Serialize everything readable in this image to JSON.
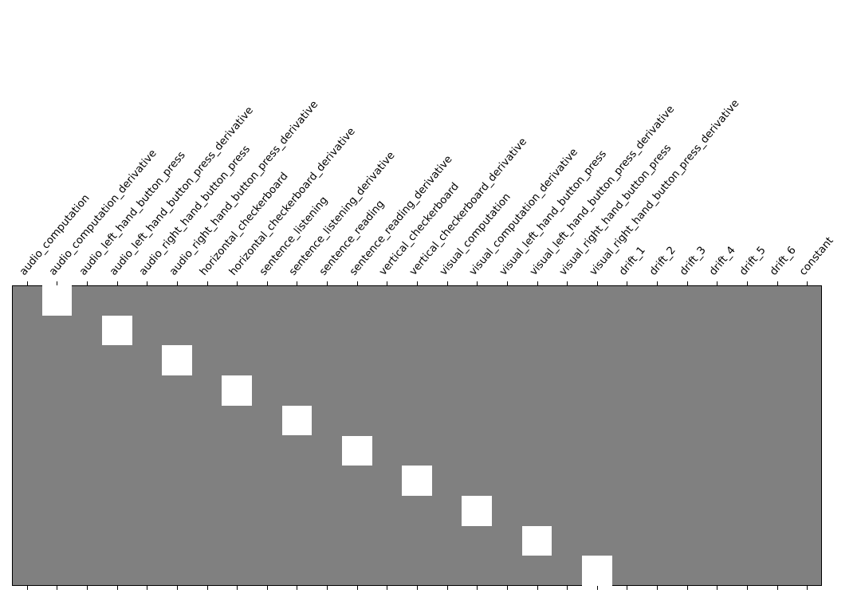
{
  "chart_data": {
    "type": "heatmap",
    "title": "",
    "xlabel": "",
    "ylabel": "",
    "colormap": "gray",
    "vmin": -1,
    "vmax": 1,
    "colors": {
      "zero": "#808080",
      "one": "#ffffff",
      "frame": "#000000"
    },
    "x_tick_position": "top",
    "x_tick_rotation_deg": 50,
    "y_ticks": [],
    "columns": [
      "audio_computation",
      "audio_computation_derivative",
      "audio_left_hand_button_press",
      "audio_left_hand_button_press_derivative",
      "audio_right_hand_button_press",
      "audio_right_hand_button_press_derivative",
      "horizontal_checkerboard",
      "horizontal_checkerboard_derivative",
      "sentence_listening",
      "sentence_listening_derivative",
      "sentence_reading",
      "sentence_reading_derivative",
      "vertical_checkerboard",
      "vertical_checkerboard_derivative",
      "visual_computation",
      "visual_computation_derivative",
      "visual_left_hand_button_press",
      "visual_left_hand_button_press_derivative",
      "visual_right_hand_button_press",
      "visual_right_hand_button_press_derivative",
      "drift_1",
      "drift_2",
      "drift_3",
      "drift_4",
      "drift_5",
      "drift_6",
      "constant"
    ],
    "n_rows": 10,
    "values": [
      [
        0,
        1,
        0,
        0,
        0,
        0,
        0,
        0,
        0,
        0,
        0,
        0,
        0,
        0,
        0,
        0,
        0,
        0,
        0,
        0,
        0,
        0,
        0,
        0,
        0,
        0,
        0
      ],
      [
        0,
        0,
        0,
        1,
        0,
        0,
        0,
        0,
        0,
        0,
        0,
        0,
        0,
        0,
        0,
        0,
        0,
        0,
        0,
        0,
        0,
        0,
        0,
        0,
        0,
        0,
        0
      ],
      [
        0,
        0,
        0,
        0,
        0,
        1,
        0,
        0,
        0,
        0,
        0,
        0,
        0,
        0,
        0,
        0,
        0,
        0,
        0,
        0,
        0,
        0,
        0,
        0,
        0,
        0,
        0
      ],
      [
        0,
        0,
        0,
        0,
        0,
        0,
        0,
        1,
        0,
        0,
        0,
        0,
        0,
        0,
        0,
        0,
        0,
        0,
        0,
        0,
        0,
        0,
        0,
        0,
        0,
        0,
        0
      ],
      [
        0,
        0,
        0,
        0,
        0,
        0,
        0,
        0,
        0,
        1,
        0,
        0,
        0,
        0,
        0,
        0,
        0,
        0,
        0,
        0,
        0,
        0,
        0,
        0,
        0,
        0,
        0
      ],
      [
        0,
        0,
        0,
        0,
        0,
        0,
        0,
        0,
        0,
        0,
        0,
        1,
        0,
        0,
        0,
        0,
        0,
        0,
        0,
        0,
        0,
        0,
        0,
        0,
        0,
        0,
        0
      ],
      [
        0,
        0,
        0,
        0,
        0,
        0,
        0,
        0,
        0,
        0,
        0,
        0,
        0,
        1,
        0,
        0,
        0,
        0,
        0,
        0,
        0,
        0,
        0,
        0,
        0,
        0,
        0
      ],
      [
        0,
        0,
        0,
        0,
        0,
        0,
        0,
        0,
        0,
        0,
        0,
        0,
        0,
        0,
        0,
        1,
        0,
        0,
        0,
        0,
        0,
        0,
        0,
        0,
        0,
        0,
        0
      ],
      [
        0,
        0,
        0,
        0,
        0,
        0,
        0,
        0,
        0,
        0,
        0,
        0,
        0,
        0,
        0,
        0,
        0,
        1,
        0,
        0,
        0,
        0,
        0,
        0,
        0,
        0,
        0
      ],
      [
        0,
        0,
        0,
        0,
        0,
        0,
        0,
        0,
        0,
        0,
        0,
        0,
        0,
        0,
        0,
        0,
        0,
        0,
        0,
        1,
        0,
        0,
        0,
        0,
        0,
        0,
        0
      ]
    ]
  }
}
